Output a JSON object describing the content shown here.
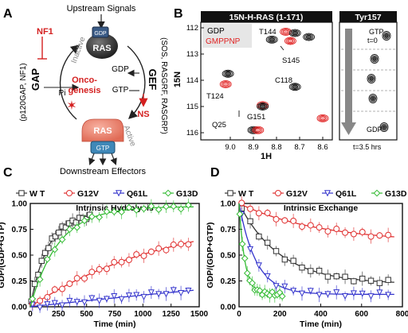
{
  "panels": {
    "A": {
      "letter": "A",
      "upstream": "Upstream Signals",
      "downstream": "Downstream Effectors",
      "nf1": "NF1",
      "gap": "GAP",
      "gef": "GEF",
      "ns": "NS",
      "oncogenesis_1": "Onco-",
      "oncogenesis_2": "genesis",
      "gdp_top": "GDP",
      "ras_top": "RAS",
      "inactive": "Inactive",
      "active": "Active",
      "ras_bottom": "RAS",
      "gtp_bottom": "GTP",
      "gdp_right": "GDP",
      "gtp_right": "GTP",
      "pi": "Pi",
      "left_paren": "(p120GAP, NF1)",
      "right_paren": "(SOS, RASGRF, RASGRP)"
    },
    "B": {
      "letter": "B",
      "title": "15N-H-RAS (1-171)",
      "tyr_title": "Tyr157",
      "legend_gdp": "GDP",
      "legend_gmppnp": "GMPPNP",
      "ylabel": "15N",
      "xlabel": "1H",
      "yticks": [
        "112",
        "113",
        "114",
        "115",
        "116"
      ],
      "xticks": [
        "9.0",
        "8.9",
        "8.8",
        "8.7",
        "8.6"
      ],
      "peaks": [
        "T144",
        "S145",
        "C118",
        "T124",
        "G151",
        "Q25"
      ],
      "gtp_label": "GTP",
      "t0_label": "t=0",
      "gdp_label": "GDP",
      "t_end_label": "t=3.5 hrs"
    }
  },
  "chart_data": [
    {
      "panel": "C",
      "type": "scatter",
      "title": "Intrinsic Hydrolysis",
      "xlabel": "Time (min)",
      "ylabel": "GDP/(GDP+GTP)",
      "xlim": [
        0,
        1500
      ],
      "ylim": [
        0,
        1.0
      ],
      "xticks": [
        "0",
        "250",
        "500",
        "750",
        "1000",
        "1250",
        "1500"
      ],
      "yticks": [
        "0.00",
        "0.25",
        "0.50",
        "0.75",
        "1.00"
      ],
      "legend": [
        "W T",
        "G12V",
        "Q61L",
        "G13D"
      ],
      "colors": {
        "WT": "#333333",
        "G12V": "#e03030",
        "Q61L": "#3333cc",
        "G13D": "#33bb33"
      },
      "series": [
        {
          "name": "W T",
          "marker": "square",
          "k": 0.0065,
          "plateau": 0.9,
          "x_max": 550
        },
        {
          "name": "G12V",
          "marker": "circle",
          "k": 0.0008,
          "plateau": 0.92,
          "x_max": 1450
        },
        {
          "name": "Q61L",
          "marker": "triangle",
          "k": 0.00012,
          "plateau": 1.0,
          "x_max": 1450
        },
        {
          "name": "G13D",
          "marker": "diamond",
          "k": 0.004,
          "plateau": 0.97,
          "x_max": 1450
        }
      ]
    },
    {
      "panel": "D",
      "type": "scatter",
      "title": "Intrinsic Exchange",
      "xlabel": "Time (min)",
      "ylabel": "GDP/(GDP+GTP)",
      "xlim": [
        0,
        800
      ],
      "ylim": [
        0,
        1.0
      ],
      "xticks": [
        "0",
        "200",
        "400",
        "600",
        "800"
      ],
      "yticks": [
        "0.00",
        "0.25",
        "0.50",
        "0.75",
        "1.00"
      ],
      "legend": [
        "W T",
        "G12V",
        "Q61L",
        "G13D"
      ],
      "colors": {
        "WT": "#333333",
        "G12V": "#e03030",
        "Q61L": "#3333cc",
        "G13D": "#33bb33"
      },
      "series": [
        {
          "name": "W T",
          "marker": "square",
          "k": 0.005,
          "base": 0.22,
          "x_max": 760
        },
        {
          "name": "G12V",
          "marker": "circle",
          "k": 0.0025,
          "base": 0.62,
          "x_max": 760
        },
        {
          "name": "Q61L",
          "marker": "triangle",
          "k": 0.012,
          "base": 0.12,
          "x_max": 760
        },
        {
          "name": "G13D",
          "marker": "diamond",
          "k": 0.035,
          "base": 0.12,
          "x_max": 220
        }
      ]
    }
  ]
}
